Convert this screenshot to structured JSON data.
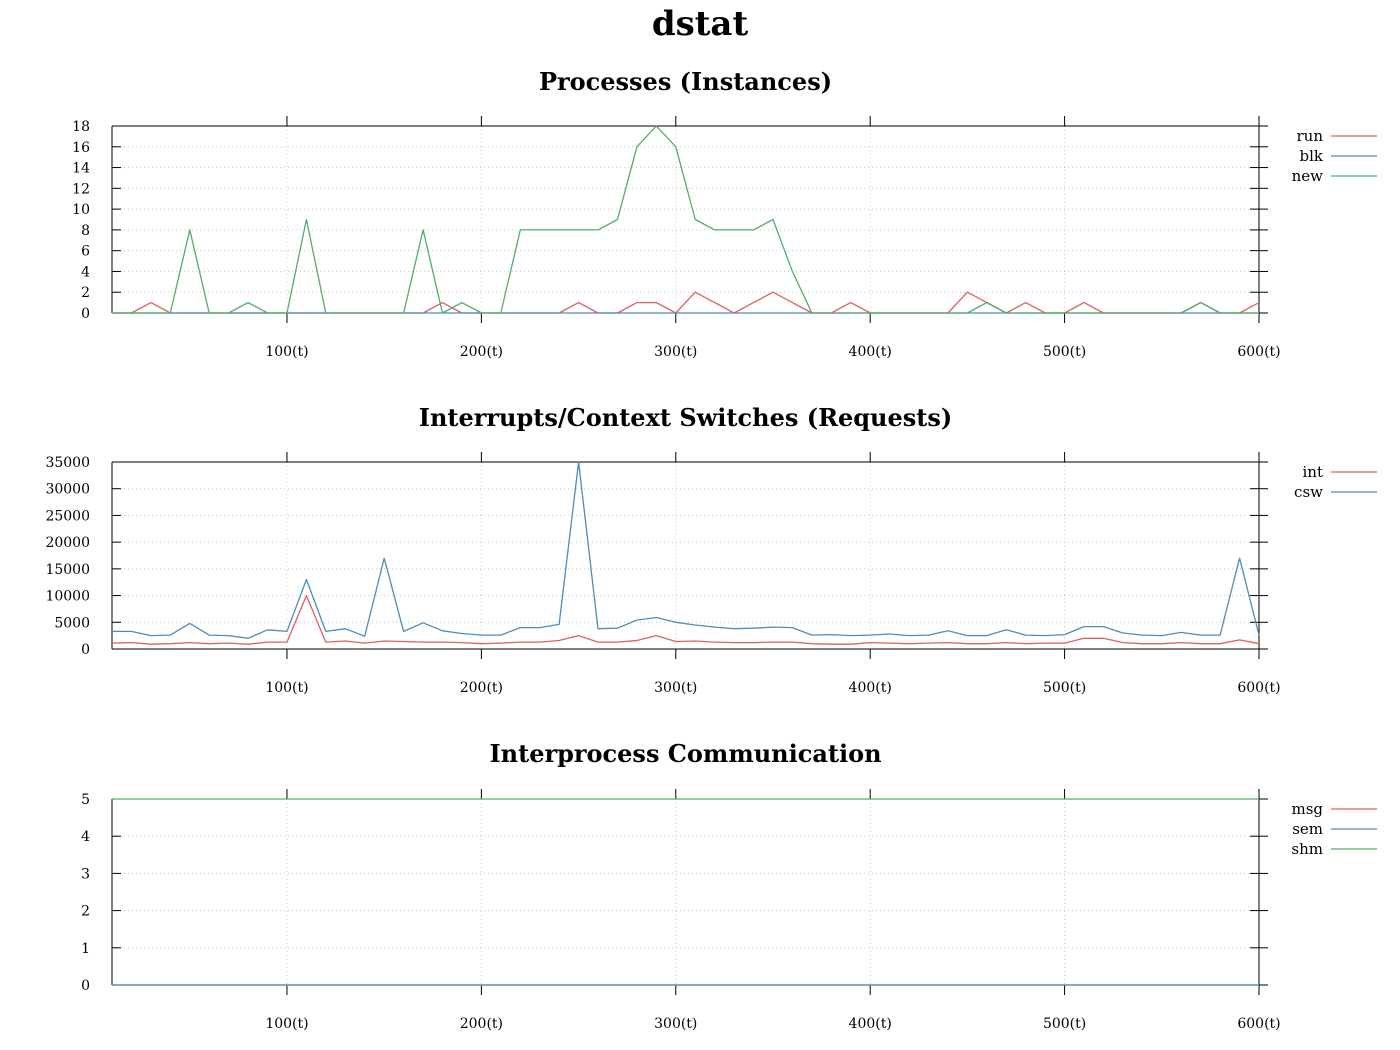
{
  "page": {
    "title": "dstat"
  },
  "colors": {
    "red": "#e06060",
    "blue": "#4b8dbd",
    "green": "#4fae6a",
    "grid": "#c8c8c8",
    "axis": "#000000"
  },
  "chart_data": [
    {
      "type": "line",
      "title": "Processes (Instances)",
      "x": [
        10,
        20,
        30,
        40,
        50,
        60,
        70,
        80,
        90,
        100,
        110,
        120,
        130,
        140,
        150,
        160,
        170,
        180,
        190,
        200,
        210,
        220,
        230,
        240,
        250,
        260,
        270,
        280,
        290,
        300,
        310,
        320,
        330,
        340,
        350,
        360,
        370,
        380,
        390,
        400,
        410,
        420,
        430,
        440,
        450,
        460,
        470,
        480,
        490,
        500,
        510,
        520,
        530,
        540,
        550,
        560,
        570,
        580,
        590,
        600
      ],
      "xlim": [
        10,
        600
      ],
      "xticks": [
        100,
        200,
        300,
        400,
        500,
        600
      ],
      "xtick_labels": [
        "100(t)",
        "200(t)",
        "300(t)",
        "400(t)",
        "500(t)",
        "600(t)"
      ],
      "ylim": [
        0,
        18
      ],
      "yticks": [
        0,
        2,
        4,
        6,
        8,
        10,
        12,
        14,
        16,
        18
      ],
      "ytick_labels": [
        "0",
        "2",
        "4",
        "6",
        "8",
        "10",
        "12",
        "14",
        "16",
        "18"
      ],
      "grid": true,
      "legend": "right",
      "series": [
        {
          "name": "run",
          "color": "#e06060",
          "values": [
            0,
            0,
            1,
            0,
            0,
            0,
            0,
            0,
            0,
            0,
            0,
            0,
            0,
            0,
            0,
            0,
            0,
            1,
            0,
            0,
            0,
            0,
            0,
            0,
            1,
            0,
            0,
            1,
            1,
            0,
            2,
            1,
            0,
            1,
            2,
            1,
            0,
            0,
            1,
            0,
            0,
            0,
            0,
            0,
            2,
            1,
            0,
            1,
            0,
            0,
            1,
            0,
            0,
            0,
            0,
            0,
            1,
            0,
            0,
            1
          ]
        },
        {
          "name": "blk",
          "color": "#4b8dbd",
          "values": [
            0,
            0,
            0,
            0,
            0,
            0,
            0,
            0,
            0,
            0,
            0,
            0,
            0,
            0,
            0,
            0,
            0,
            0,
            0,
            0,
            0,
            0,
            0,
            0,
            0,
            0,
            0,
            0,
            0,
            0,
            0,
            0,
            0,
            0,
            0,
            0,
            0,
            0,
            0,
            0,
            0,
            0,
            0,
            0,
            0,
            0,
            0,
            0,
            0,
            0,
            0,
            0,
            0,
            0,
            0,
            0,
            0,
            0,
            0,
            0
          ]
        },
        {
          "name": "new",
          "color": "#4fae6a",
          "values": [
            0,
            0,
            0,
            0,
            8,
            0,
            0,
            1,
            0,
            0,
            9,
            0,
            0,
            0,
            0,
            0,
            8,
            0,
            1,
            0,
            0,
            8,
            8,
            8,
            8,
            8,
            9,
            16,
            18,
            16,
            9,
            8,
            8,
            8,
            9,
            4,
            0,
            0,
            0,
            0,
            0,
            0,
            0,
            0,
            0,
            1,
            0,
            0,
            0,
            0,
            0,
            0,
            0,
            0,
            0,
            0,
            1,
            0,
            0,
            0
          ]
        }
      ]
    },
    {
      "type": "line",
      "title": "Interrupts/Context Switches (Requests)",
      "x": [
        10,
        20,
        30,
        40,
        50,
        60,
        70,
        80,
        90,
        100,
        110,
        120,
        130,
        140,
        150,
        160,
        170,
        180,
        190,
        200,
        210,
        220,
        230,
        240,
        250,
        260,
        270,
        280,
        290,
        300,
        310,
        320,
        330,
        340,
        350,
        360,
        370,
        380,
        390,
        400,
        410,
        420,
        430,
        440,
        450,
        460,
        470,
        480,
        490,
        500,
        510,
        520,
        530,
        540,
        550,
        560,
        570,
        580,
        590,
        600
      ],
      "xlim": [
        10,
        600
      ],
      "xticks": [
        100,
        200,
        300,
        400,
        500,
        600
      ],
      "xtick_labels": [
        "100(t)",
        "200(t)",
        "300(t)",
        "400(t)",
        "500(t)",
        "600(t)"
      ],
      "ylim": [
        0,
        35000
      ],
      "yticks": [
        0,
        5000,
        10000,
        15000,
        20000,
        25000,
        30000,
        35000
      ],
      "ytick_labels": [
        "0",
        "5000",
        "10000",
        "15000",
        "20000",
        "25000",
        "30000",
        "35000"
      ],
      "grid": true,
      "legend": "right",
      "series": [
        {
          "name": "int",
          "color": "#e06060",
          "values": [
            1100,
            1200,
            900,
            1000,
            1200,
            1000,
            1100,
            900,
            1300,
            1300,
            10000,
            1300,
            1500,
            1100,
            1500,
            1400,
            1300,
            1300,
            1200,
            1000,
            1100,
            1300,
            1300,
            1600,
            2500,
            1300,
            1300,
            1600,
            2500,
            1400,
            1500,
            1300,
            1200,
            1200,
            1300,
            1300,
            1000,
            900,
            900,
            1200,
            1100,
            1000,
            1100,
            1200,
            1000,
            1000,
            1200,
            1000,
            1100,
            1100,
            2000,
            2000,
            1200,
            1000,
            1000,
            1200,
            1000,
            1000,
            1700,
            1000
          ]
        },
        {
          "name": "csw",
          "color": "#4b8dbd",
          "values": [
            3300,
            3300,
            2500,
            2600,
            4800,
            2600,
            2500,
            2000,
            3600,
            3300,
            13000,
            3300,
            3800,
            2400,
            17000,
            3300,
            4900,
            3400,
            2900,
            2600,
            2600,
            4000,
            4000,
            4600,
            35000,
            3800,
            3900,
            5400,
            5900,
            5000,
            4500,
            4100,
            3800,
            3900,
            4100,
            4000,
            2600,
            2700,
            2500,
            2600,
            2800,
            2500,
            2600,
            3400,
            2500,
            2500,
            3600,
            2600,
            2500,
            2700,
            4200,
            4200,
            3000,
            2600,
            2500,
            3100,
            2600,
            2600,
            17000,
            2600
          ]
        }
      ]
    },
    {
      "type": "line",
      "title": "Interprocess Communication",
      "x": [
        10,
        600
      ],
      "xlim": [
        10,
        600
      ],
      "xticks": [
        100,
        200,
        300,
        400,
        500,
        600
      ],
      "xtick_labels": [
        "100(t)",
        "200(t)",
        "300(t)",
        "400(t)",
        "500(t)",
        "600(t)"
      ],
      "ylim": [
        0,
        5
      ],
      "yticks": [
        0,
        1,
        2,
        3,
        4,
        5
      ],
      "ytick_labels": [
        "0",
        "1",
        "2",
        "3",
        "4",
        "5"
      ],
      "grid": true,
      "legend": "right",
      "series": [
        {
          "name": "msg",
          "color": "#e06060",
          "values": [
            0,
            0
          ]
        },
        {
          "name": "sem",
          "color": "#4b8dbd",
          "values": [
            0,
            0
          ]
        },
        {
          "name": "shm",
          "color": "#4fae6a",
          "values": [
            5,
            5
          ]
        }
      ]
    }
  ]
}
